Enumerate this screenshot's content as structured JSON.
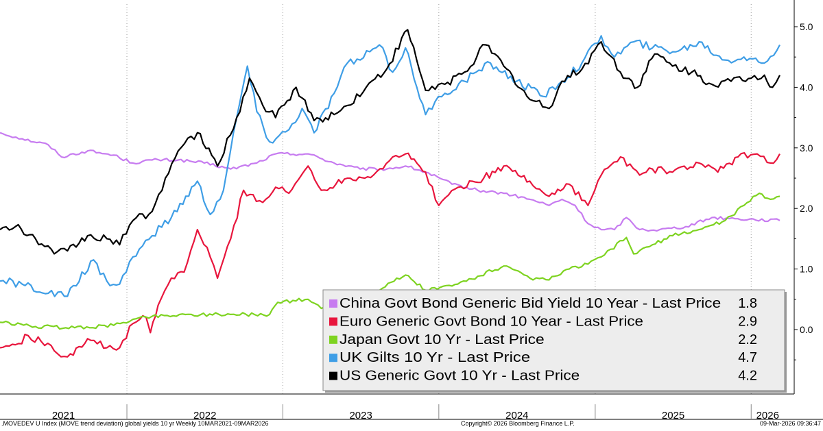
{
  "chart_data": {
    "type": "line",
    "title": "",
    "xlabel": "",
    "ylabel": "",
    "x_range": [
      "2021-03-10",
      "2026-03-09"
    ],
    "ylim": [
      -1.0,
      5.2
    ],
    "y_ticks": [
      "5.0",
      "4.0",
      "3.0",
      "2.0",
      "1.0",
      "0.0"
    ],
    "y_tick_values": [
      5.0,
      4.0,
      3.0,
      2.0,
      1.0,
      0.0
    ],
    "y_axis_side": "right",
    "grid": "vertical dotted",
    "year_labels": [
      "2021",
      "2022",
      "2023",
      "2024",
      "2025",
      "2026"
    ],
    "legend_placement": "bottom-right",
    "series": [
      {
        "name": "China Govt Bond Generic Bid Yield 10 Year - Last Price",
        "last": "1.8",
        "color": "#c77cf0",
        "points": [
          [
            "2021-03-10",
            3.25
          ],
          [
            "2021-05-01",
            3.15
          ],
          [
            "2021-07-01",
            3.05
          ],
          [
            "2021-08-01",
            2.85
          ],
          [
            "2021-10-01",
            2.95
          ],
          [
            "2021-12-01",
            2.88
          ],
          [
            "2022-01-15",
            2.75
          ],
          [
            "2022-03-01",
            2.8
          ],
          [
            "2022-05-01",
            2.8
          ],
          [
            "2022-07-01",
            2.75
          ],
          [
            "2022-09-01",
            2.65
          ],
          [
            "2022-11-01",
            2.75
          ],
          [
            "2022-12-15",
            2.9
          ],
          [
            "2023-03-01",
            2.9
          ],
          [
            "2023-05-01",
            2.75
          ],
          [
            "2023-07-01",
            2.65
          ],
          [
            "2023-09-01",
            2.65
          ],
          [
            "2023-10-15",
            2.7
          ],
          [
            "2023-12-01",
            2.6
          ],
          [
            "2024-02-01",
            2.4
          ],
          [
            "2024-04-01",
            2.3
          ],
          [
            "2024-06-01",
            2.25
          ],
          [
            "2024-08-01",
            2.15
          ],
          [
            "2024-09-15",
            2.05
          ],
          [
            "2024-10-15",
            2.15
          ],
          [
            "2024-11-15",
            2.05
          ],
          [
            "2024-12-15",
            1.75
          ],
          [
            "2025-01-15",
            1.65
          ],
          [
            "2025-02-15",
            1.65
          ],
          [
            "2025-03-15",
            1.85
          ],
          [
            "2025-04-15",
            1.65
          ],
          [
            "2025-06-01",
            1.65
          ],
          [
            "2025-08-01",
            1.7
          ],
          [
            "2025-10-01",
            1.85
          ],
          [
            "2025-12-01",
            1.83
          ],
          [
            "2026-03-09",
            1.8
          ]
        ]
      },
      {
        "name": "Euro Generic Govt Bond 10 Year - Last Price",
        "last": "2.9",
        "color": "#e8163d",
        "points": [
          [
            "2021-03-10",
            -0.3
          ],
          [
            "2021-04-15",
            -0.25
          ],
          [
            "2021-05-15",
            -0.1
          ],
          [
            "2021-06-15",
            -0.2
          ],
          [
            "2021-07-15",
            -0.35
          ],
          [
            "2021-08-15",
            -0.45
          ],
          [
            "2021-10-01",
            -0.15
          ],
          [
            "2021-11-15",
            -0.3
          ],
          [
            "2021-12-15",
            -0.3
          ],
          [
            "2022-01-15",
            0.1
          ],
          [
            "2022-02-15",
            0.2
          ],
          [
            "2022-02-25",
            -0.05
          ],
          [
            "2022-03-15",
            0.4
          ],
          [
            "2022-04-15",
            0.85
          ],
          [
            "2022-05-15",
            0.95
          ],
          [
            "2022-06-15",
            1.65
          ],
          [
            "2022-07-15",
            1.2
          ],
          [
            "2022-08-01",
            0.85
          ],
          [
            "2022-09-01",
            1.5
          ],
          [
            "2022-10-01",
            2.3
          ],
          [
            "2022-11-15",
            2.1
          ],
          [
            "2022-12-15",
            2.35
          ],
          [
            "2023-01-15",
            2.25
          ],
          [
            "2023-03-01",
            2.7
          ],
          [
            "2023-04-01",
            2.3
          ],
          [
            "2023-06-01",
            2.5
          ],
          [
            "2023-08-01",
            2.55
          ],
          [
            "2023-09-15",
            2.85
          ],
          [
            "2023-10-15",
            2.9
          ],
          [
            "2023-12-01",
            2.6
          ],
          [
            "2024-01-01",
            2.05
          ],
          [
            "2024-02-15",
            2.35
          ],
          [
            "2024-04-15",
            2.5
          ],
          [
            "2024-06-01",
            2.7
          ],
          [
            "2024-08-01",
            2.45
          ],
          [
            "2024-09-15",
            2.2
          ],
          [
            "2024-11-01",
            2.4
          ],
          [
            "2024-12-15",
            2.05
          ],
          [
            "2025-01-15",
            2.55
          ],
          [
            "2025-03-01",
            2.85
          ],
          [
            "2025-04-15",
            2.55
          ],
          [
            "2025-05-15",
            2.65
          ],
          [
            "2025-07-01",
            2.6
          ],
          [
            "2025-09-01",
            2.75
          ],
          [
            "2025-10-15",
            2.6
          ],
          [
            "2025-12-01",
            2.85
          ],
          [
            "2026-01-15",
            2.9
          ],
          [
            "2026-02-15",
            2.75
          ],
          [
            "2026-03-09",
            2.9
          ]
        ]
      },
      {
        "name": "Japan Govt 10 Yr - Last Price",
        "last": "2.2",
        "color": "#7ed321",
        "points": [
          [
            "2021-03-10",
            0.12
          ],
          [
            "2021-06-01",
            0.05
          ],
          [
            "2021-09-01",
            0.03
          ],
          [
            "2021-12-01",
            0.07
          ],
          [
            "2022-01-15",
            0.17
          ],
          [
            "2022-03-01",
            0.22
          ],
          [
            "2022-06-01",
            0.25
          ],
          [
            "2022-09-01",
            0.25
          ],
          [
            "2022-12-01",
            0.25
          ],
          [
            "2022-12-20",
            0.45
          ],
          [
            "2023-03-01",
            0.5
          ],
          [
            "2023-04-01",
            0.35
          ],
          [
            "2023-06-01",
            0.42
          ],
          [
            "2023-08-01",
            0.62
          ],
          [
            "2023-10-15",
            0.9
          ],
          [
            "2023-12-01",
            0.65
          ],
          [
            "2024-02-01",
            0.72
          ],
          [
            "2024-04-01",
            0.88
          ],
          [
            "2024-06-01",
            1.05
          ],
          [
            "2024-08-01",
            0.85
          ],
          [
            "2024-09-15",
            0.82
          ],
          [
            "2024-11-01",
            1.0
          ],
          [
            "2024-12-15",
            1.08
          ],
          [
            "2025-01-15",
            1.2
          ],
          [
            "2025-03-15",
            1.52
          ],
          [
            "2025-04-01",
            1.25
          ],
          [
            "2025-05-15",
            1.4
          ],
          [
            "2025-07-01",
            1.55
          ],
          [
            "2025-09-01",
            1.65
          ],
          [
            "2025-11-01",
            1.8
          ],
          [
            "2025-12-15",
            2.05
          ],
          [
            "2026-01-20",
            2.25
          ],
          [
            "2026-02-15",
            2.15
          ],
          [
            "2026-03-09",
            2.2
          ]
        ]
      },
      {
        "name": "UK Gilts 10 Yr - Last Price",
        "last": "4.7",
        "color": "#3f9ee6",
        "points": [
          [
            "2021-03-10",
            0.8
          ],
          [
            "2021-05-01",
            0.75
          ],
          [
            "2021-07-01",
            0.6
          ],
          [
            "2021-08-15",
            0.55
          ],
          [
            "2021-10-15",
            1.15
          ],
          [
            "2021-11-15",
            0.8
          ],
          [
            "2021-12-15",
            0.75
          ],
          [
            "2022-01-15",
            1.2
          ],
          [
            "2022-03-01",
            1.55
          ],
          [
            "2022-04-15",
            1.85
          ],
          [
            "2022-06-15",
            2.45
          ],
          [
            "2022-07-15",
            1.9
          ],
          [
            "2022-08-15",
            2.3
          ],
          [
            "2022-09-15",
            3.5
          ],
          [
            "2022-10-10",
            4.35
          ],
          [
            "2022-11-01",
            3.6
          ],
          [
            "2022-12-01",
            3.1
          ],
          [
            "2023-01-15",
            3.3
          ],
          [
            "2023-02-15",
            3.65
          ],
          [
            "2023-03-15",
            3.25
          ],
          [
            "2023-05-01",
            3.9
          ],
          [
            "2023-06-01",
            4.4
          ],
          [
            "2023-07-01",
            4.45
          ],
          [
            "2023-08-15",
            4.7
          ],
          [
            "2023-09-15",
            4.25
          ],
          [
            "2023-10-15",
            4.65
          ],
          [
            "2023-12-01",
            3.55
          ],
          [
            "2024-01-15",
            3.9
          ],
          [
            "2024-03-01",
            4.1
          ],
          [
            "2024-05-01",
            4.4
          ],
          [
            "2024-07-01",
            4.1
          ],
          [
            "2024-09-01",
            3.85
          ],
          [
            "2024-10-15",
            4.1
          ],
          [
            "2024-12-01",
            4.4
          ],
          [
            "2025-01-15",
            4.85
          ],
          [
            "2025-02-15",
            4.5
          ],
          [
            "2025-04-01",
            4.75
          ],
          [
            "2025-05-15",
            4.65
          ],
          [
            "2025-07-15",
            4.6
          ],
          [
            "2025-09-01",
            4.75
          ],
          [
            "2025-11-01",
            4.45
          ],
          [
            "2025-12-15",
            4.5
          ],
          [
            "2026-02-01",
            4.4
          ],
          [
            "2026-03-09",
            4.7
          ]
        ]
      },
      {
        "name": "US Generic Govt 10 Yr - Last Price",
        "last": "4.2",
        "color": "#000000",
        "points": [
          [
            "2021-03-10",
            1.65
          ],
          [
            "2021-04-15",
            1.7
          ],
          [
            "2021-06-01",
            1.5
          ],
          [
            "2021-07-15",
            1.25
          ],
          [
            "2021-08-15",
            1.3
          ],
          [
            "2021-10-01",
            1.55
          ],
          [
            "2021-11-15",
            1.5
          ],
          [
            "2021-12-15",
            1.4
          ],
          [
            "2022-01-15",
            1.8
          ],
          [
            "2022-03-01",
            1.95
          ],
          [
            "2022-04-01",
            2.5
          ],
          [
            "2022-05-01",
            2.95
          ],
          [
            "2022-06-15",
            3.25
          ],
          [
            "2022-08-01",
            2.7
          ],
          [
            "2022-09-15",
            3.5
          ],
          [
            "2022-10-15",
            4.15
          ],
          [
            "2022-11-15",
            3.7
          ],
          [
            "2022-12-15",
            3.5
          ],
          [
            "2023-02-01",
            4.0
          ],
          [
            "2023-03-15",
            3.45
          ],
          [
            "2023-05-01",
            3.55
          ],
          [
            "2023-06-01",
            3.7
          ],
          [
            "2023-07-15",
            4.0
          ],
          [
            "2023-09-01",
            4.3
          ],
          [
            "2023-10-20",
            4.95
          ],
          [
            "2023-12-01",
            3.95
          ],
          [
            "2024-01-15",
            4.05
          ],
          [
            "2024-03-01",
            4.25
          ],
          [
            "2024-04-20",
            4.7
          ],
          [
            "2024-06-01",
            4.35
          ],
          [
            "2024-08-01",
            3.8
          ],
          [
            "2024-09-15",
            3.65
          ],
          [
            "2024-10-15",
            4.1
          ],
          [
            "2024-12-01",
            4.3
          ],
          [
            "2025-01-15",
            4.75
          ],
          [
            "2025-03-01",
            4.25
          ],
          [
            "2025-04-10",
            4.0
          ],
          [
            "2025-05-20",
            4.55
          ],
          [
            "2025-07-01",
            4.35
          ],
          [
            "2025-08-15",
            4.25
          ],
          [
            "2025-10-01",
            4.05
          ],
          [
            "2025-11-15",
            4.1
          ],
          [
            "2026-01-01",
            4.15
          ],
          [
            "2026-02-01",
            4.2
          ],
          [
            "2026-02-20",
            4.0
          ],
          [
            "2026-03-09",
            4.2
          ]
        ]
      }
    ]
  },
  "footer": {
    "left": ".MOVEDEV U Index (MOVE trend deviation) global yields 10 yr Weekly 10MAR2021-09MAR2026",
    "center": "Copyright© 2026 Bloomberg Finance L.P.",
    "right": "09-Mar-2026 09:36:47"
  }
}
